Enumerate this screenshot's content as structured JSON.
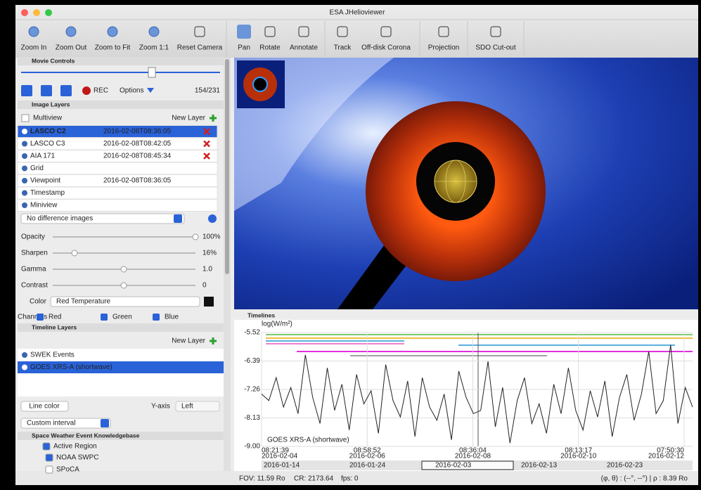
{
  "window": {
    "title": "ESA JHelioviewer"
  },
  "toolbar": [
    "Zoom In",
    "Zoom Out",
    "Zoom to Fit",
    "Zoom 1:1",
    "Reset Camera",
    "Pan",
    "Rotate",
    "Annotate",
    "Track",
    "Off-disk Corona",
    "Projection",
    "SDO Cut-out"
  ],
  "movie_controls": {
    "header": "Movie Controls",
    "rec": "REC",
    "options": "Options",
    "frame": "154/231"
  },
  "image_layers": {
    "header": "Image Layers",
    "multiview": "Multiview",
    "new_layer": "New Layer",
    "layers": [
      {
        "name": "LASCO C2",
        "time": "2016-02-08T08:36:05"
      },
      {
        "name": "LASCO C3",
        "time": "2016-02-08T08:42:05"
      },
      {
        "name": "AIA 171",
        "time": "2016-02-08T08:45:34"
      },
      {
        "name": "Grid"
      },
      {
        "name": "Viewpoint",
        "time": "2016-02-08T08:36:05"
      },
      {
        "name": "Timestamp"
      },
      {
        "name": "Miniview"
      }
    ],
    "difference": "No difference images",
    "adjust": [
      {
        "label": "Opacity",
        "value": "100%"
      },
      {
        "label": "Sharpen",
        "value": "16%"
      },
      {
        "label": "Gamma",
        "value": "1.0"
      },
      {
        "label": "Contrast",
        "value": "0"
      }
    ],
    "color_label": "Color",
    "color": "Red Temperature",
    "channels_label": "Channels",
    "channels": [
      "Red",
      "Green",
      "Blue"
    ]
  },
  "timeline_layers": {
    "header": "Timeline Layers",
    "new_layer": "New Layer",
    "layers": [
      "SWEK Events",
      "GOES XRS-A (shortwave)"
    ],
    "line_color": "Line color",
    "y_axis": "Y-axis",
    "y_axis_value": "Left",
    "interval": "Custom interval"
  },
  "swek": {
    "header": "Space Weather Event Knowledgebase",
    "items": [
      "Active Region",
      "NOAA SWPC",
      "SPoCA"
    ]
  },
  "timeline": {
    "header": "Timelines",
    "y_label": "log(W/m²)",
    "ylim": [
      -9,
      -5.52
    ],
    "yticks": [
      -5.52,
      -6.39,
      -7.26,
      -8.13,
      {
        "value": -9,
        "label": "-9.00"
      }
    ],
    "xticks": [
      {
        "time": "08:21:39",
        "date": "2016-02-04"
      },
      {
        "time": "08:58:52",
        "date": "2016-02-06"
      },
      {
        "time": "08:36:04",
        "date": "2016-02-08"
      },
      {
        "time": "08:13:17",
        "date": "2016-02-10"
      },
      {
        "time": "07:50:30",
        "date": "2016-02-12"
      }
    ],
    "range_labels": [
      "2016-01-14",
      "2016-01-24",
      "2016-02-03",
      "2016-02-13",
      "2016-02-23"
    ],
    "series": [
      {
        "name": "GOES XRS-A (shortwave)",
        "color": "#222222",
        "values": [
          -7.4,
          -7.6,
          -6.9,
          -7.8,
          -7.2,
          -8.0,
          -6.2,
          -7.5,
          -8.3,
          -6.6,
          -7.9,
          -7.1,
          -8.5,
          -6.8,
          -7.7,
          -7.3,
          -8.6,
          -6.5,
          -7.6,
          -8.1,
          -7.0,
          -8.7,
          -6.9,
          -7.8,
          -8.2,
          -7.4,
          -8.8,
          -6.7,
          -7.5,
          -8.0,
          -7.9,
          -6.4,
          -8.4,
          -7.2,
          -8.9,
          -7.6,
          -6.9,
          -8.3,
          -7.7,
          -8.6,
          -7.1,
          -8.0,
          -6.6,
          -7.9,
          -8.5,
          -7.3,
          -8.1,
          -7.0,
          -8.7,
          -7.5,
          -6.8,
          -8.2,
          -7.4,
          -6.1,
          -8.0,
          -7.6,
          -5.9,
          -8.3,
          -7.2,
          -7.8
        ]
      }
    ]
  },
  "status": {
    "fov": "FOV: 11.59 Ro",
    "cr": "CR: 2173.64",
    "fps": "fps: 0",
    "coords": "(φ, θ) : (--°, --°) | ρ : 8.39 Ro"
  }
}
